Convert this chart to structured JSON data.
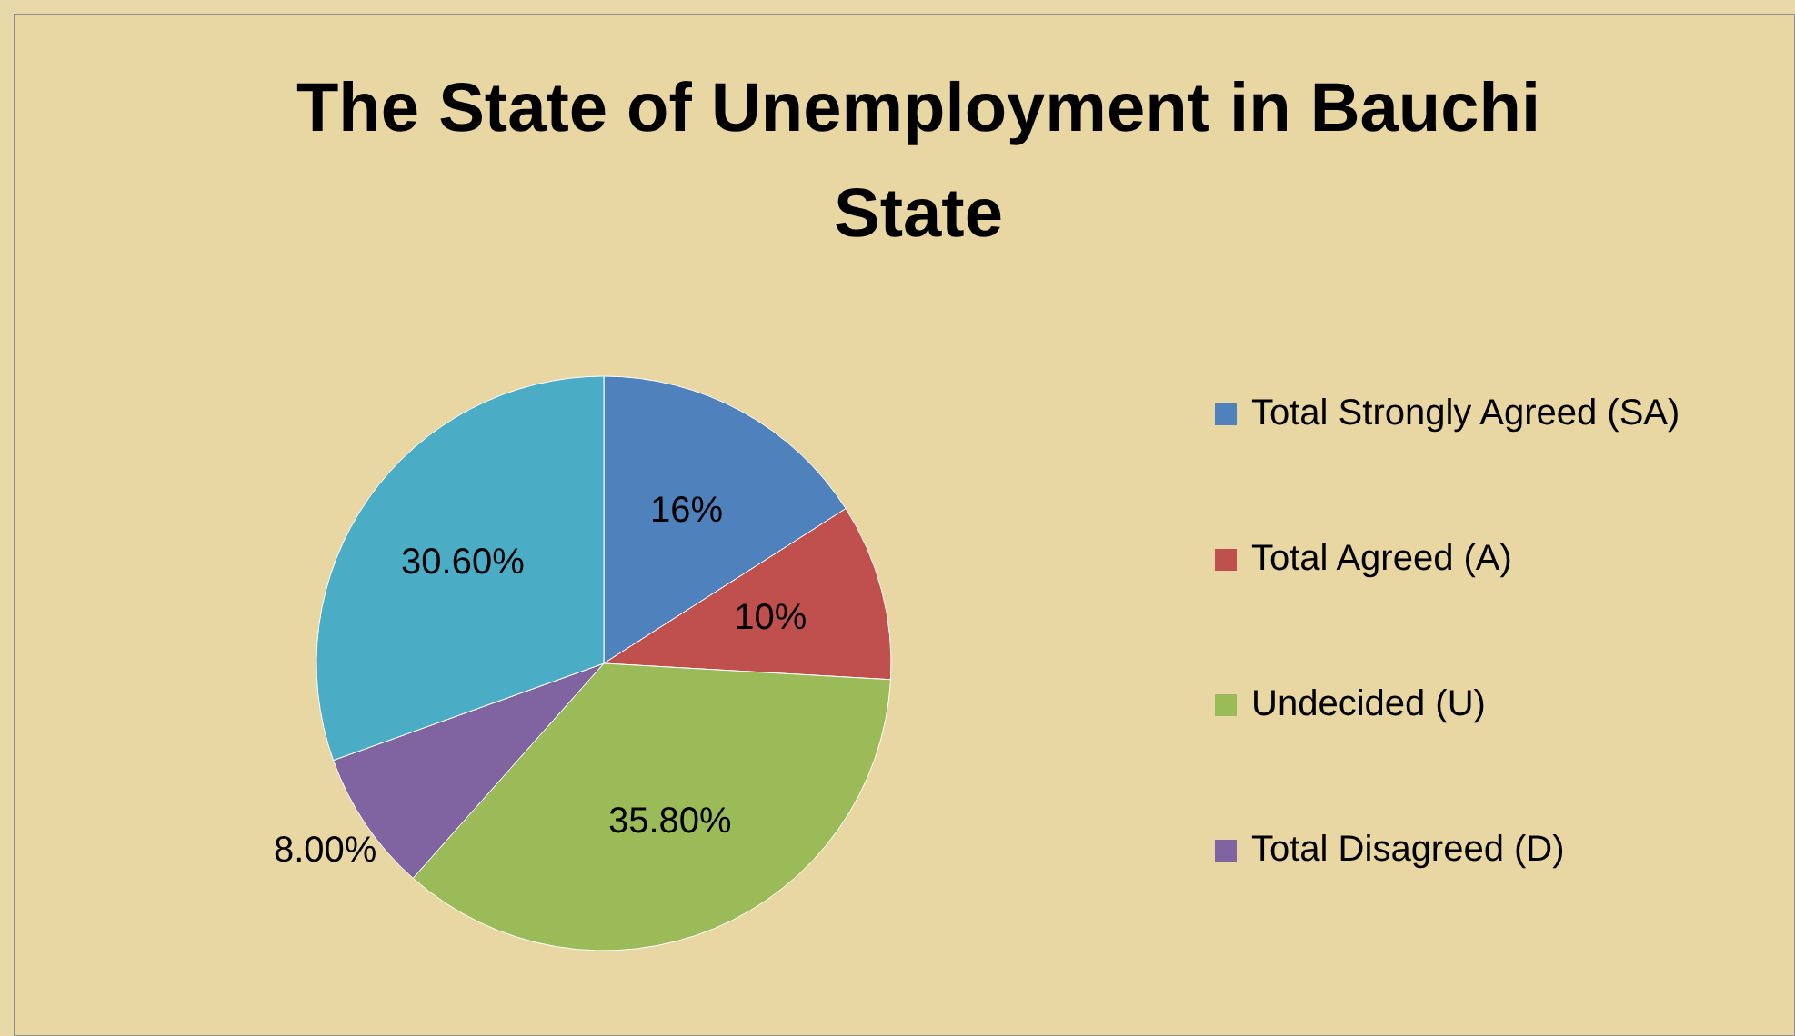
{
  "chart_data": {
    "type": "pie",
    "title": "The State of Unemployment in Bauchi State",
    "categories": [
      "Total Strongly Agreed (SA)",
      "Total Agreed (A)",
      "Undecided (U)",
      "Total Disagreed (D)",
      null
    ],
    "values": [
      16,
      10,
      35.8,
      8,
      30.6
    ],
    "value_labels": [
      "16%",
      "10%",
      "35.80%",
      "8.00%",
      "30.60%"
    ],
    "colors": [
      "#4f81bd",
      "#c0504d",
      "#9bbb59",
      "#8064a2",
      "#4bacc6"
    ],
    "legend": "right"
  }
}
